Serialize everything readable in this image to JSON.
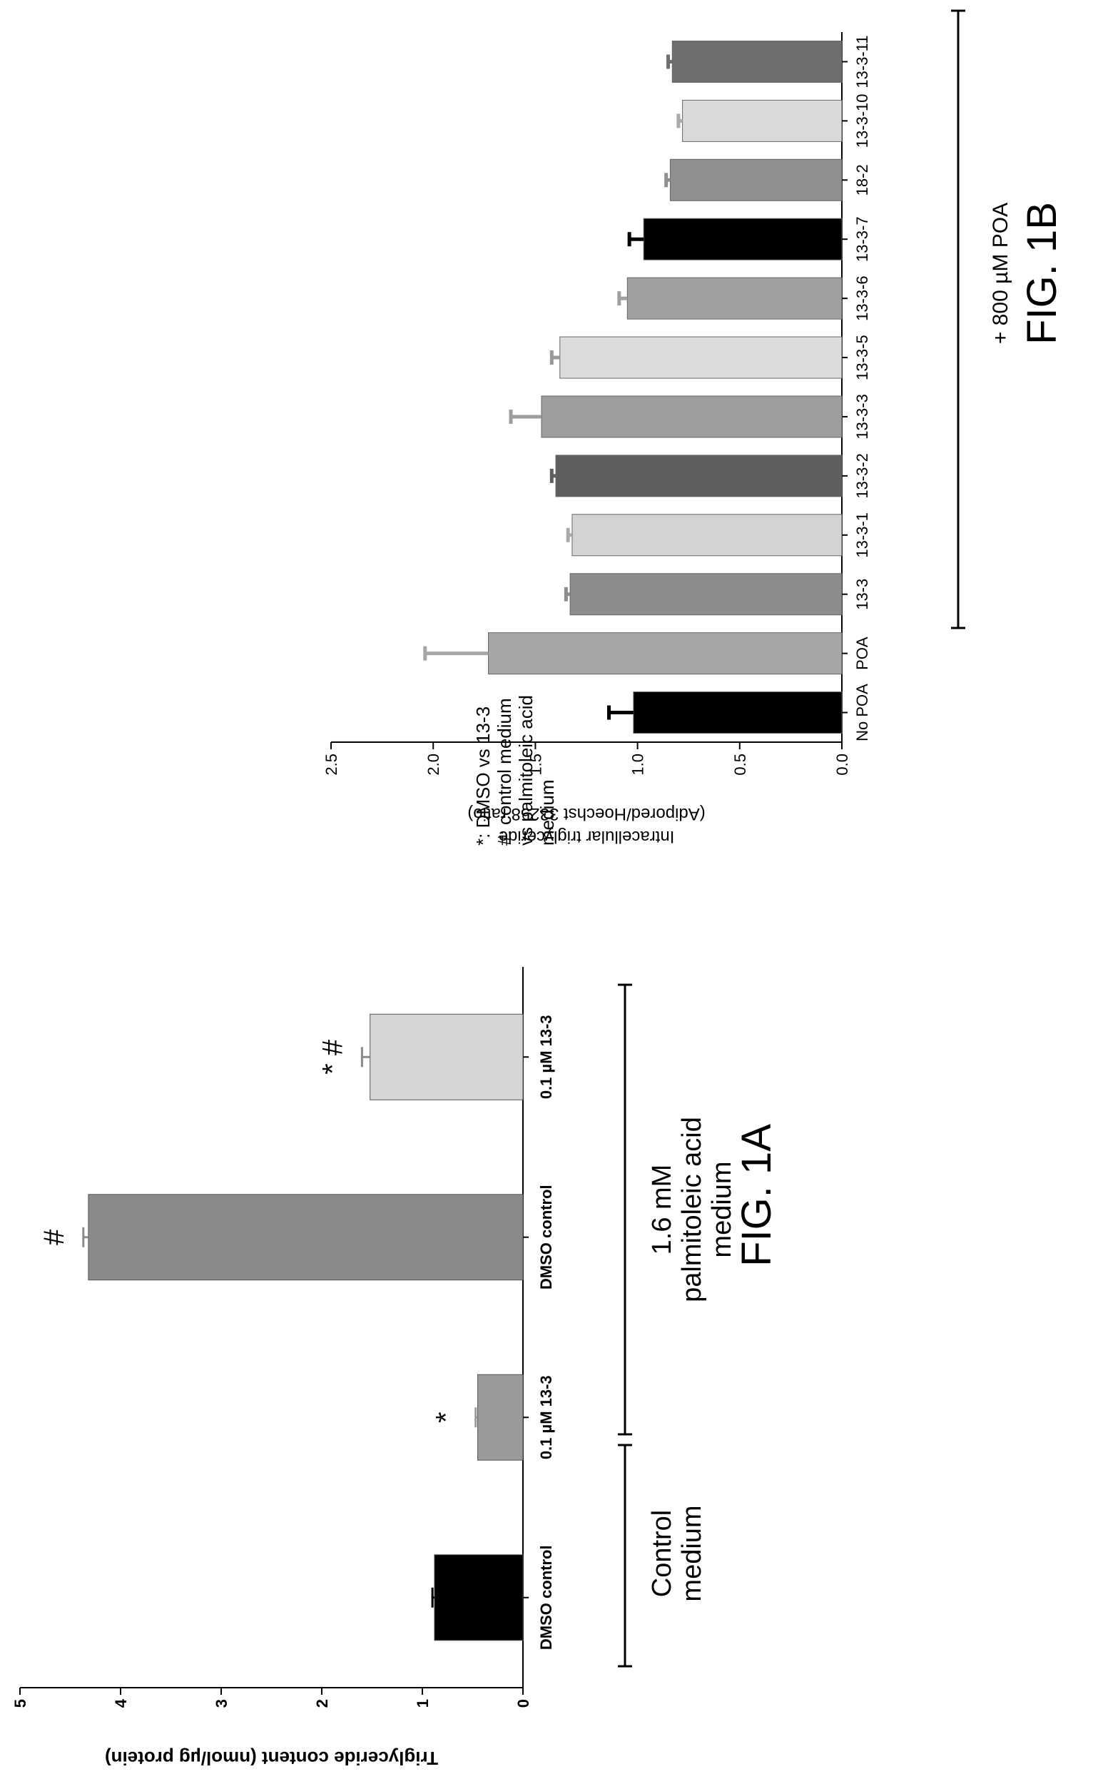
{
  "figure_page": {
    "rotation_note_visible": false
  },
  "chart_data": [
    {
      "id": "fig1a",
      "type": "bar",
      "figure_label": "FIG. 1A",
      "ylabel": "Triglyceride content (nmol/µg protein)",
      "ylim": [
        0,
        5
      ],
      "yticks": [
        "0",
        "1",
        "2",
        "3",
        "4",
        "5"
      ],
      "categories": [
        "DMSO control",
        "0.1 µM 13-3",
        "DMSO control",
        "0.1 µM 13-3"
      ],
      "values": [
        0.88,
        0.45,
        4.32,
        1.52
      ],
      "errors": [
        0.02,
        0.02,
        0.05,
        0.08
      ],
      "bar_colors": [
        "#000000",
        "#9a9a9a",
        "#8a8a8a",
        "#d6d6d6"
      ],
      "error_colors": [
        "#000000",
        "#9a9a9a",
        "#8a8a8a",
        "#8a8a8a"
      ],
      "markers": [
        "",
        "*",
        "#",
        "*  #"
      ],
      "groups": [
        {
          "label_lines": [
            "Control",
            "medium"
          ]
        },
        {
          "label_lines": [
            "1.6 mM",
            "palmitoleic acid",
            "medium"
          ]
        }
      ],
      "legend_lines": [
        "*: DMSO vs 13-3",
        "#: control medium",
        "vs palmitoleic acid",
        "medium"
      ]
    },
    {
      "id": "fig1b",
      "type": "bar",
      "figure_label": "FIG. 1B",
      "ylabel_lines": [
        "Intracellular triglyceride",
        "(Adipored/Hoechst 33258 ratio)"
      ],
      "ylim": [
        0,
        2.5
      ],
      "yticks": [
        "0.0",
        "0.5",
        "1.0",
        "1.5",
        "2.0",
        "2.5"
      ],
      "categories": [
        "No POA",
        "POA",
        "13-3",
        "13-3-1",
        "13-3-2",
        "13-3-3",
        "13-3-5",
        "13-3-6",
        "13-3-7",
        "18-2",
        "13-3-10",
        "13-3-11"
      ],
      "values": [
        1.02,
        1.73,
        1.33,
        1.32,
        1.4,
        1.47,
        1.38,
        1.05,
        0.97,
        0.84,
        0.78,
        0.83
      ],
      "errors": [
        0.12,
        0.31,
        0.02,
        0.02,
        0.02,
        0.15,
        0.04,
        0.04,
        0.07,
        0.02,
        0.02,
        0.02
      ],
      "bar_colors": [
        "#000000",
        "#a6a6a6",
        "#8c8c8c",
        "#d3d3d3",
        "#5e5e5e",
        "#9d9d9d",
        "#dcdcdc",
        "#a0a0a0",
        "#000000",
        "#8f8f8f",
        "#dadada",
        "#6e6e6e"
      ],
      "error_colors": [
        "#000000",
        "#a6a6a6",
        "#8c8c8c",
        "#aaaaaa",
        "#5e5e5e",
        "#9d9d9d",
        "#999999",
        "#a0a0a0",
        "#000000",
        "#8f8f8f",
        "#aaaaaa",
        "#6e6e6e"
      ],
      "bracket_label": "+ 800 µM POA"
    }
  ]
}
